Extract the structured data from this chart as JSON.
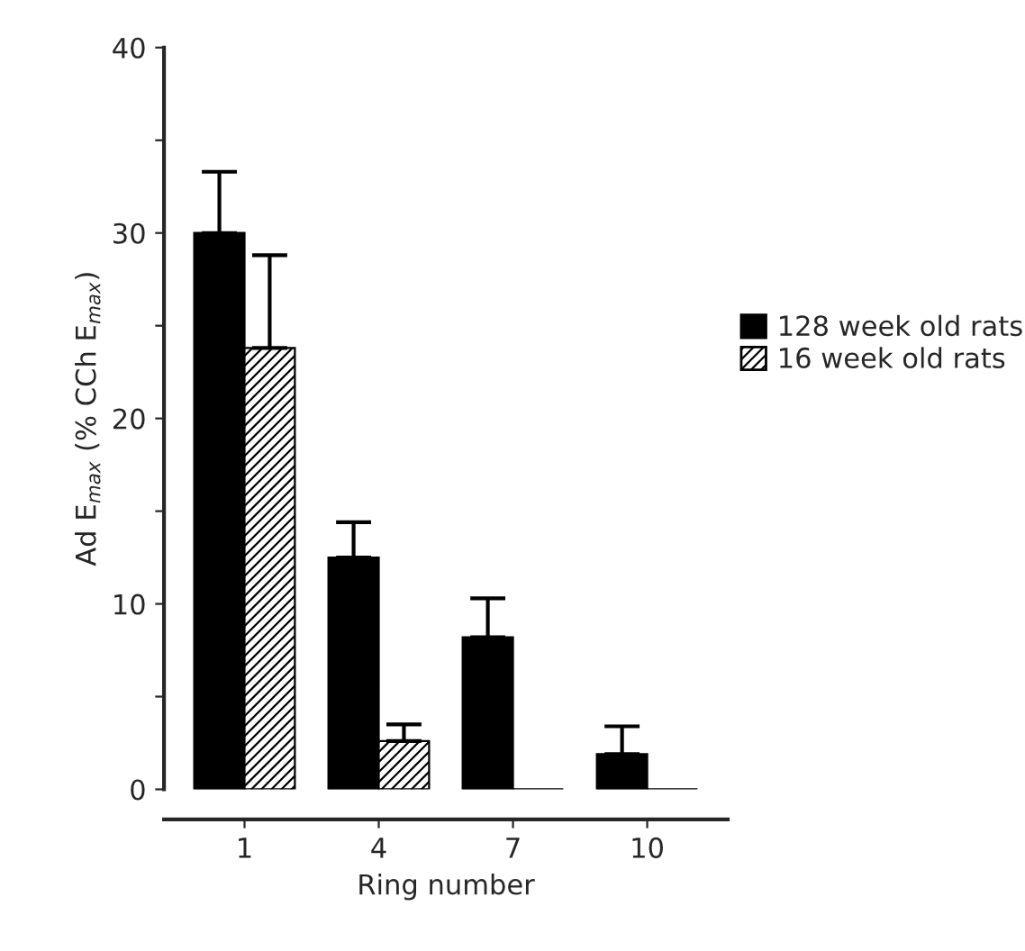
{
  "chart_data": {
    "type": "bar",
    "xlabel": "Ring number",
    "ylabel": "Ad E$_{max}$ (% CCh E$_{max}$)",
    "categories": [
      "1",
      "4",
      "7",
      "10"
    ],
    "series": [
      {
        "name": "128 week old rats",
        "color": "#000000",
        "values": [
          30,
          12.5,
          8.2,
          1.9
        ],
        "errors": [
          [
            30,
            33.3
          ],
          [
            12.5,
            14.4
          ],
          [
            8.2,
            10.3
          ],
          [
            1.9,
            3.4
          ]
        ]
      },
      {
        "name": "16 week old rats",
        "color": "#000000",
        "values": [
          23.8,
          2.6,
          0,
          0
        ],
        "errors": [
          [
            23.8,
            28.8
          ],
          [
            2.6,
            3.5
          ],
          null,
          null
        ]
      }
    ],
    "ylim": [
      0,
      40
    ],
    "yticks": [
      0,
      {
        "value": 5,
        "label": null
      },
      10,
      {
        "value": 15,
        "label": null
      },
      20,
      {
        "value": 25,
        "label": null
      },
      30,
      {
        "value": 35,
        "label": null
      },
      40
    ],
    "grid": false,
    "legend": "right"
  }
}
